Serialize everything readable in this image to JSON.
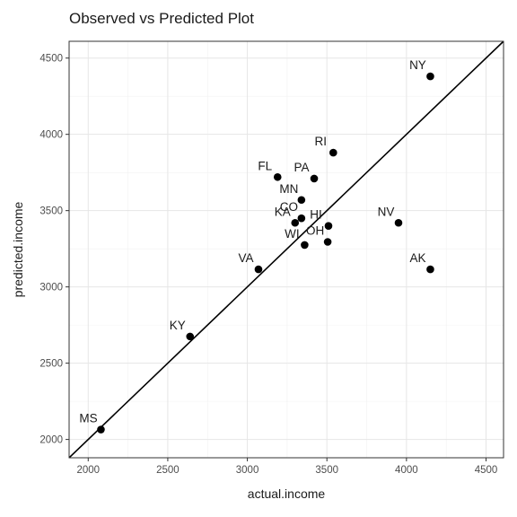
{
  "chart_data": {
    "type": "scatter",
    "title": "Observed vs Predicted Plot",
    "xlabel": "actual.income",
    "ylabel": "predicted.income",
    "xlim": [
      1880,
      4610
    ],
    "ylim": [
      1880,
      4610
    ],
    "xticks": [
      2000,
      2500,
      3000,
      3500,
      4000,
      4500
    ],
    "yticks": [
      2000,
      2500,
      3000,
      3500,
      4000,
      4500
    ],
    "grid": true,
    "reference_line": {
      "type": "identity",
      "slope": 1,
      "intercept": 0
    },
    "points": [
      {
        "label": "NY",
        "x": 4150,
        "y": 4380
      },
      {
        "label": "RI",
        "x": 3540,
        "y": 3880
      },
      {
        "label": "FL",
        "x": 3190,
        "y": 3720
      },
      {
        "label": "PA",
        "x": 3420,
        "y": 3710
      },
      {
        "label": "MN",
        "x": 3340,
        "y": 3570
      },
      {
        "label": "CO",
        "x": 3340,
        "y": 3450
      },
      {
        "label": "KA",
        "x": 3300,
        "y": 3420
      },
      {
        "label": "HI",
        "x": 3510,
        "y": 3400
      },
      {
        "label": "NV",
        "x": 3950,
        "y": 3420
      },
      {
        "label": "OH",
        "x": 3505,
        "y": 3295
      },
      {
        "label": "WI",
        "x": 3360,
        "y": 3275
      },
      {
        "label": "VA",
        "x": 3070,
        "y": 3115
      },
      {
        "label": "AK",
        "x": 4150,
        "y": 3115
      },
      {
        "label": "KY",
        "x": 2640,
        "y": 2675
      },
      {
        "label": "MS",
        "x": 2080,
        "y": 2065
      }
    ],
    "colors": {
      "point": "#000000",
      "line": "#000000"
    }
  }
}
